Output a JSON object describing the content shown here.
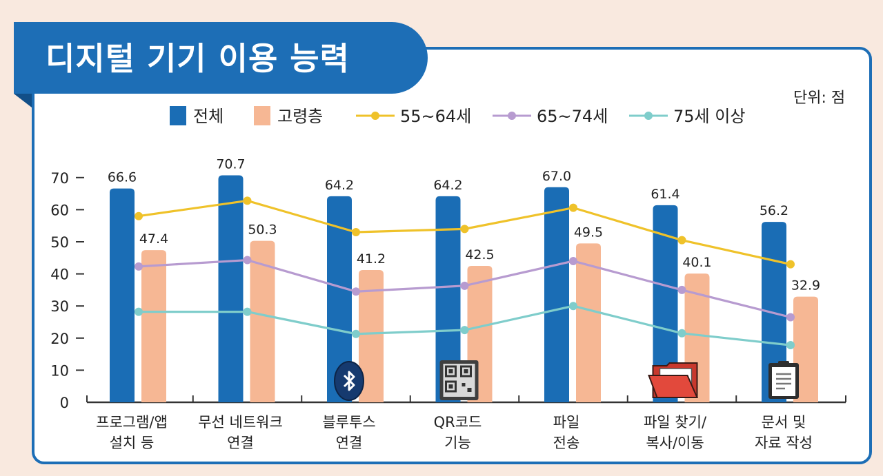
{
  "title": "디지털 기기 이용 능력",
  "unit_label": "단위: 점",
  "colors": {
    "frame": "#1d6eb6",
    "bar_total": "#1a6db5",
    "bar_elderly": "#f6b794",
    "line_55_64": "#efc22a",
    "line_65_74": "#b79bd0",
    "line_75_plus": "#7fcdcb",
    "background": "#f9e9df"
  },
  "chart_data": {
    "type": "bar",
    "categories": [
      [
        "프로그램/앱",
        "설치 등"
      ],
      [
        "무선 네트워크",
        "연결"
      ],
      [
        "블루투스",
        "연결"
      ],
      [
        "QR코드",
        "기능"
      ],
      [
        "파일",
        "전송"
      ],
      [
        "파일 찾기/",
        "복사/이동"
      ],
      [
        "문서 및",
        "자료 작성"
      ]
    ],
    "ylim": [
      0,
      70
    ],
    "yticks": [
      0,
      10,
      20,
      30,
      40,
      50,
      60,
      70
    ],
    "series": [
      {
        "name": "전체",
        "kind": "bar",
        "color": "#1a6db5",
        "values": [
          66.6,
          70.7,
          64.2,
          64.2,
          67.0,
          61.4,
          56.2
        ],
        "labels": [
          "66.6",
          "70.7",
          "64.2",
          "64.2",
          "67.0",
          "61.4",
          "56.2"
        ]
      },
      {
        "name": "고령층",
        "kind": "bar",
        "color": "#f6b794",
        "values": [
          47.4,
          50.3,
          41.2,
          42.5,
          49.5,
          40.1,
          32.9
        ],
        "labels": [
          "47.4",
          "50.3",
          "41.2",
          "42.5",
          "49.5",
          "40.1",
          "32.9"
        ]
      },
      {
        "name": "55~64세",
        "kind": "line",
        "color": "#efc22a",
        "values": [
          58.0,
          62.8,
          53.0,
          54.0,
          60.6,
          50.5,
          43.0
        ]
      },
      {
        "name": "65~74세",
        "kind": "line",
        "color": "#b79bd0",
        "values": [
          42.3,
          44.3,
          34.5,
          36.3,
          44.0,
          35.0,
          26.5
        ]
      },
      {
        "name": "75세 이상",
        "kind": "line",
        "color": "#7fcdcb",
        "values": [
          28.2,
          28.2,
          21.3,
          22.5,
          30.0,
          21.5,
          17.8
        ]
      }
    ],
    "icons": [
      {
        "category_index": 2,
        "name": "bluetooth-icon"
      },
      {
        "category_index": 3,
        "name": "qr-code-icon"
      },
      {
        "category_index": 5,
        "name": "folder-icon"
      },
      {
        "category_index": 6,
        "name": "document-icon"
      }
    ],
    "legend_position": "top"
  }
}
